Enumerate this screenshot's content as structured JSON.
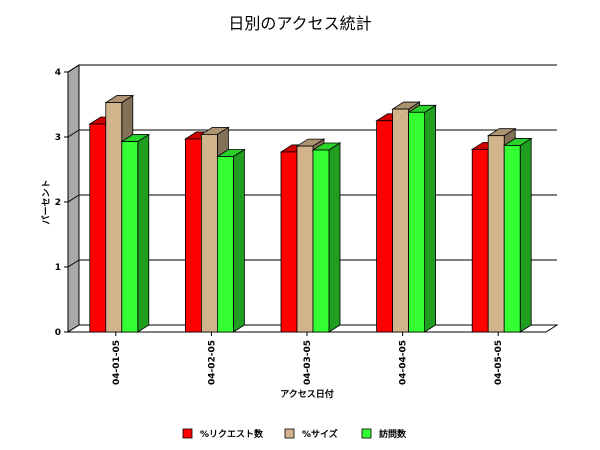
{
  "chart_data": {
    "type": "bar",
    "title": "日別のアクセス統計",
    "xlabel": "アクセス日付",
    "ylabel": "パーセント",
    "categories": [
      "04-01-05",
      "04-02-05",
      "04-03-05",
      "04-04-05",
      "04-05-05"
    ],
    "ylim": [
      0,
      4
    ],
    "yticks": [
      0,
      1,
      2,
      3,
      4
    ],
    "grid": true,
    "legend": "bottom",
    "series": [
      {
        "name": "%リクエスト数",
        "color": "#ff0000",
        "values": [
          3.2,
          2.97,
          2.77,
          3.25,
          2.81
        ]
      },
      {
        "name": "%サイズ",
        "color": "#d2b48c",
        "values": [
          3.53,
          3.04,
          2.86,
          3.43,
          3.02
        ]
      },
      {
        "name": "訪問数",
        "color": "#33ff33",
        "values": [
          2.93,
          2.7,
          2.8,
          3.38,
          2.87
        ]
      }
    ]
  }
}
